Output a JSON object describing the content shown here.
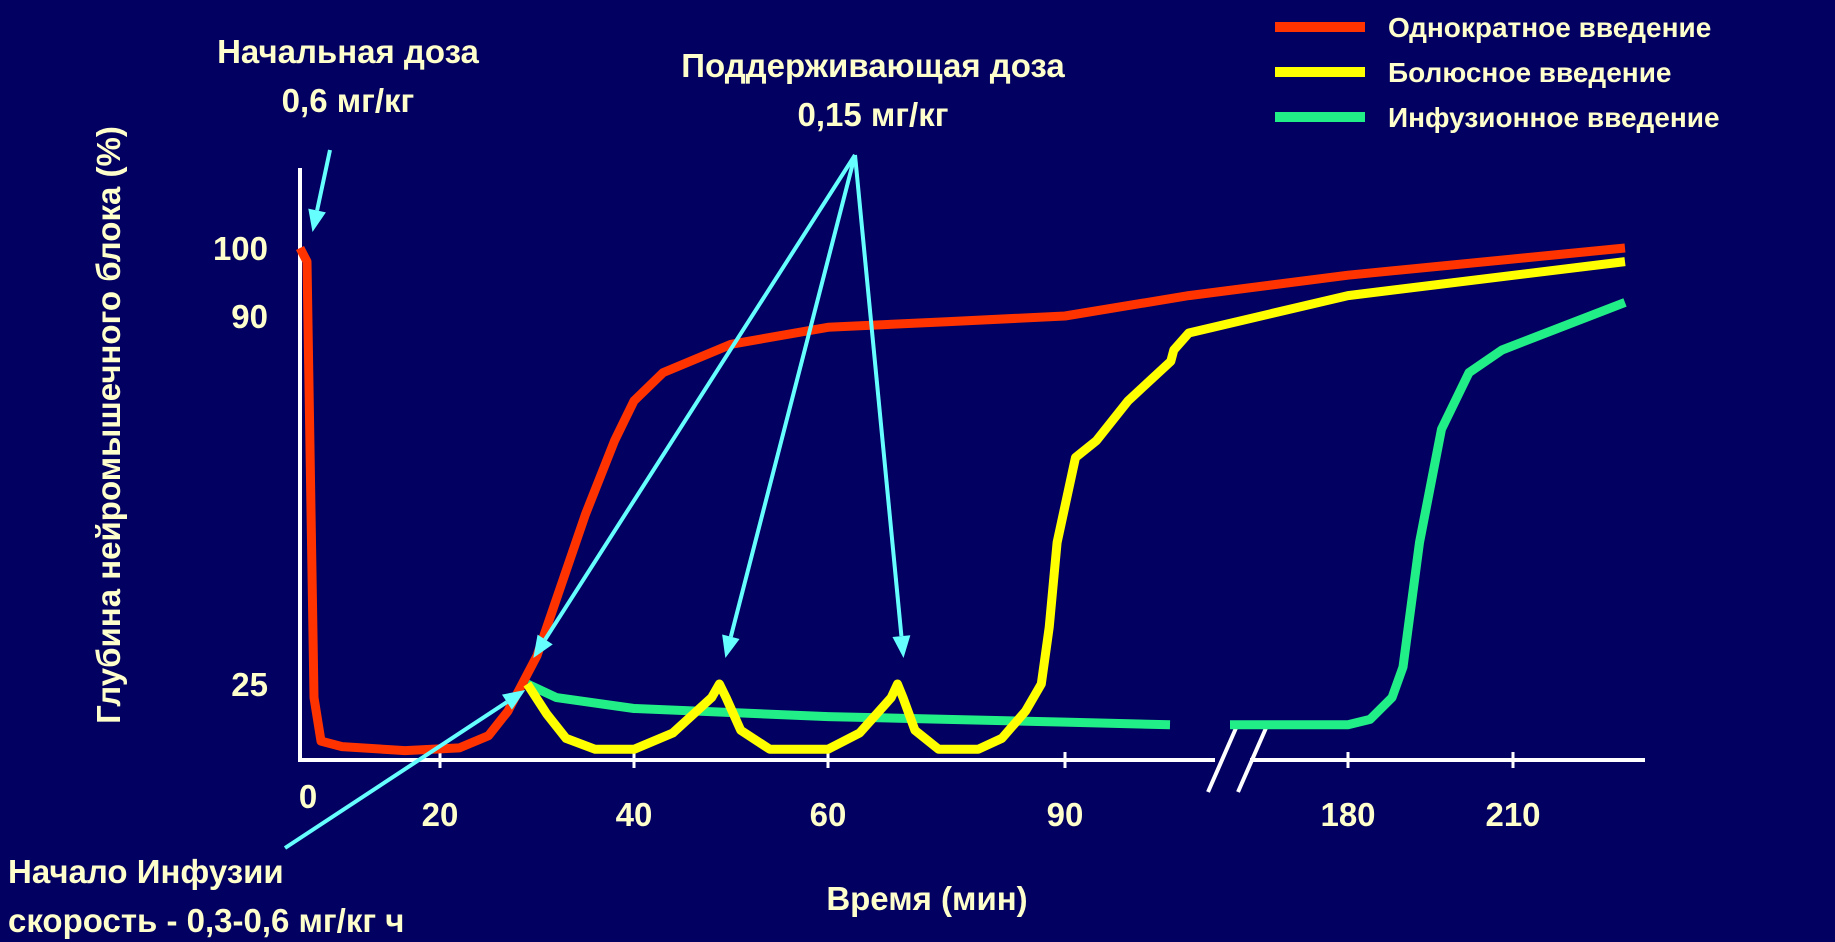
{
  "chart_data": {
    "type": "line",
    "title": "",
    "xlabel": "Время (мин)",
    "ylabel": "Глубина нейромышечного блока (%)",
    "x_ticks": [
      "0",
      "20",
      "40",
      "60",
      "90",
      "180",
      "210"
    ],
    "y_ticks": [
      "100",
      "90",
      "25"
    ],
    "axis_break": "between 90 and 180",
    "legend_position": "top-right",
    "grid": false,
    "colors": {
      "single": "#ff3300",
      "bolus": "#ffff00",
      "infusion": "#22ee88",
      "arrow": "#66ffff",
      "text": "#ffffcc",
      "background": "#020060"
    },
    "series": [
      {
        "name": "Однократное введение",
        "color": "#ff3300",
        "points": [
          [
            0,
            100
          ],
          [
            1,
            98
          ],
          [
            2,
            20
          ],
          [
            3,
            4
          ],
          [
            6,
            2
          ],
          [
            15,
            0.5
          ],
          [
            22,
            1.5
          ],
          [
            25,
            6
          ],
          [
            27,
            15
          ],
          [
            30,
            30
          ],
          [
            35,
            55
          ],
          [
            38,
            68
          ],
          [
            40,
            75
          ],
          [
            43,
            80
          ],
          [
            50,
            85
          ],
          [
            60,
            88
          ],
          [
            75,
            89
          ],
          [
            90,
            90
          ],
          [
            120,
            93
          ],
          [
            180,
            96
          ],
          [
            215,
            100
          ]
        ]
      },
      {
        "name": "Болюсное введение",
        "color": "#ffff00",
        "points": [
          [
            29,
            25
          ],
          [
            31,
            14
          ],
          [
            33,
            5
          ],
          [
            36,
            1
          ],
          [
            40,
            1
          ],
          [
            44,
            7
          ],
          [
            48,
            20
          ],
          [
            48.8,
            25
          ],
          [
            49.5,
            20
          ],
          [
            51,
            8
          ],
          [
            54,
            1
          ],
          [
            60,
            1
          ],
          [
            64,
            7
          ],
          [
            68,
            20
          ],
          [
            68.8,
            25
          ],
          [
            69.5,
            20
          ],
          [
            71,
            8
          ],
          [
            74,
            1
          ],
          [
            79,
            1
          ],
          [
            82,
            5
          ],
          [
            85,
            15
          ],
          [
            87,
            25
          ],
          [
            88,
            35
          ],
          [
            89,
            50
          ],
          [
            90.5,
            65
          ],
          [
            91.5,
            68
          ],
          [
            93,
            75
          ],
          [
            96,
            82
          ],
          [
            100,
            84
          ],
          [
            120,
            87
          ],
          [
            180,
            93
          ],
          [
            215,
            98
          ]
        ]
      },
      {
        "name": "Инфузионное введение",
        "color": "#22ee88",
        "points": [
          [
            29,
            25
          ],
          [
            32,
            20
          ],
          [
            40,
            16
          ],
          [
            60,
            13
          ],
          [
            90,
            11
          ],
          [
            95,
            10
          ],
          [
            175,
            10
          ],
          [
            180,
            10
          ],
          [
            184,
            12
          ],
          [
            188,
            20
          ],
          [
            190,
            28
          ],
          [
            193,
            50
          ],
          [
            197,
            70
          ],
          [
            202,
            80
          ],
          [
            208,
            84
          ],
          [
            215,
            92
          ]
        ]
      }
    ],
    "annotations": [
      {
        "lines": [
          "Начальная доза",
          "0,6 мг/кг"
        ],
        "target": {
          "x": 1.5,
          "y": 100
        }
      },
      {
        "lines": [
          "Поддерживающая доза",
          "0,15 мг/кг"
        ],
        "targets": [
          {
            "x": 29,
            "y": 25
          },
          {
            "x": 48.8,
            "y": 25
          },
          {
            "x": 68.8,
            "y": 25
          }
        ]
      },
      {
        "lines": [
          "Начало Инфузии",
          "скорость - 0,3-0,6 мг/кг ч"
        ],
        "target": {
          "x": 29,
          "y": 25
        }
      }
    ]
  }
}
